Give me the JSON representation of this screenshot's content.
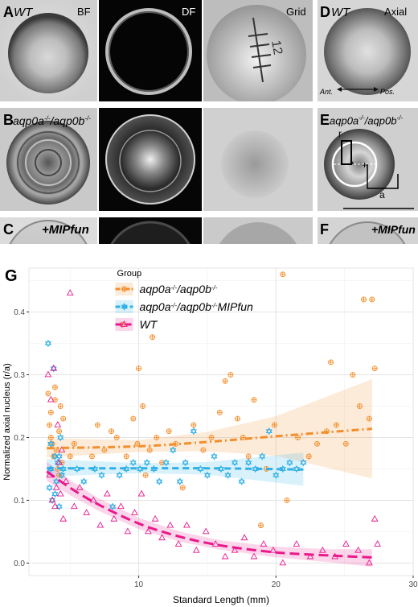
{
  "panels": {
    "A": {
      "letter": "A",
      "genotype": "WT"
    },
    "B": {
      "letter": "B",
      "genotype": "aqp0a",
      "genotype_sup1": "-/-",
      "genotype_mid": "/aqp0b",
      "genotype_sup2": "-/-"
    },
    "C": {
      "letter": "C",
      "treatment": "+MIPfun"
    },
    "D": {
      "letter": "D",
      "genotype": "WT",
      "view": "Axial",
      "ant": "Ant.",
      "pos": "Pos."
    },
    "E": {
      "letter": "E",
      "genotype": "aqp0a",
      "genotype_sup1": "-/-",
      "genotype_mid": "/aqp0b",
      "genotype_sup2": "-/-",
      "r_label": "r",
      "a_label": "a"
    },
    "F": {
      "letter": "F",
      "treatment": "+MIPfun"
    },
    "G": {
      "letter": "G"
    }
  },
  "column_labels": {
    "bf": "BF",
    "df": "DF",
    "grid": "Grid",
    "grid_number": "12"
  },
  "chart_data": {
    "type": "scatter",
    "xlabel": "Standard Length (mm)",
    "ylabel": "Normalized axial nucleus (r/a)",
    "xlim": [
      2,
      30
    ],
    "ylim": [
      -0.02,
      0.47
    ],
    "xticks": [
      10,
      20,
      30
    ],
    "yticks": [
      0.0,
      0.1,
      0.2,
      0.3,
      0.4
    ],
    "grid": true,
    "legend": {
      "title": "Group",
      "placement": "top-left"
    },
    "series": [
      {
        "name": "aqp0a-/-/aqp0b-/-",
        "name_parts": [
          "aqp0a",
          "-/-",
          "/aqp0b",
          "-/-",
          ""
        ],
        "color": "#f28e2b",
        "marker": "circle-plus",
        "line_style": "dash-dot",
        "fit": [
          [
            3.3,
            0.183
          ],
          [
            10,
            0.186
          ],
          [
            15,
            0.193
          ],
          [
            20,
            0.202
          ],
          [
            27,
            0.214
          ]
        ],
        "ci": [
          [
            3.3,
            0.168,
            0.199
          ],
          [
            10,
            0.177,
            0.196
          ],
          [
            15,
            0.178,
            0.209
          ],
          [
            20,
            0.171,
            0.234
          ],
          [
            27,
            0.135,
            0.293
          ]
        ],
        "points": [
          [
            3.4,
            0.27
          ],
          [
            3.5,
            0.22
          ],
          [
            3.6,
            0.24
          ],
          [
            3.7,
            0.19
          ],
          [
            3.8,
            0.17
          ],
          [
            3.9,
            0.26
          ],
          [
            4.0,
            0.18
          ],
          [
            4.1,
            0.15
          ],
          [
            4.2,
            0.21
          ],
          [
            4.3,
            0.25
          ],
          [
            4.4,
            0.16
          ],
          [
            4.5,
            0.23
          ],
          [
            3.6,
            0.2
          ],
          [
            3.9,
            0.28
          ],
          [
            4.2,
            0.14
          ],
          [
            5.0,
            0.17
          ],
          [
            5.3,
            0.19
          ],
          [
            6.6,
            0.17
          ],
          [
            7.0,
            0.22
          ],
          [
            7.5,
            0.18
          ],
          [
            8.0,
            0.21
          ],
          [
            8.4,
            0.2
          ],
          [
            8.8,
            0.38
          ],
          [
            9.1,
            0.17
          ],
          [
            9.6,
            0.23
          ],
          [
            9.9,
            0.19
          ],
          [
            10.0,
            0.31
          ],
          [
            10.3,
            0.25
          ],
          [
            10.5,
            0.14
          ],
          [
            10.8,
            0.18
          ],
          [
            11.0,
            0.36
          ],
          [
            11.3,
            0.2
          ],
          [
            11.7,
            0.16
          ],
          [
            12.2,
            0.21
          ],
          [
            12.7,
            0.19
          ],
          [
            13.2,
            0.12
          ],
          [
            14.0,
            0.22
          ],
          [
            14.7,
            0.18
          ],
          [
            15.3,
            0.2
          ],
          [
            15.9,
            0.24
          ],
          [
            16.3,
            0.29
          ],
          [
            16.7,
            0.3
          ],
          [
            17.2,
            0.23
          ],
          [
            17.6,
            0.2
          ],
          [
            18.0,
            0.17
          ],
          [
            18.4,
            0.26
          ],
          [
            18.9,
            0.06
          ],
          [
            19.3,
            0.15
          ],
          [
            19.9,
            0.22
          ],
          [
            20.5,
            0.46
          ],
          [
            20.8,
            0.1
          ],
          [
            21.6,
            0.2
          ],
          [
            22.4,
            0.17
          ],
          [
            23.0,
            0.19
          ],
          [
            23.7,
            0.21
          ],
          [
            24.0,
            0.32
          ],
          [
            24.4,
            0.22
          ],
          [
            25.1,
            0.19
          ],
          [
            25.6,
            0.3
          ],
          [
            26.1,
            0.25
          ],
          [
            26.4,
            0.42
          ],
          [
            26.8,
            0.23
          ],
          [
            27.0,
            0.42
          ],
          [
            27.2,
            0.31
          ]
        ]
      },
      {
        "name": "aqp0a-/-/aqp0b-/-MIPfun",
        "name_parts": [
          "aqp0a",
          "-/-",
          "/aqp0b",
          "-/-",
          "MIPfun"
        ],
        "color": "#2fb0e6",
        "marker": "hexagram",
        "line_style": "dashed",
        "fit": [
          [
            3.3,
            0.151
          ],
          [
            10,
            0.151
          ],
          [
            15,
            0.151
          ],
          [
            22,
            0.149
          ]
        ],
        "ci": [
          [
            3.3,
            0.138,
            0.166
          ],
          [
            10,
            0.143,
            0.159
          ],
          [
            15,
            0.141,
            0.161
          ],
          [
            22,
            0.123,
            0.176
          ]
        ],
        "points": [
          [
            3.4,
            0.35
          ],
          [
            3.5,
            0.12
          ],
          [
            3.6,
            0.15
          ],
          [
            3.7,
            0.1
          ],
          [
            3.8,
            0.31
          ],
          [
            3.9,
            0.17
          ],
          [
            4.0,
            0.13
          ],
          [
            4.1,
            0.16
          ],
          [
            4.2,
            0.09
          ],
          [
            4.3,
            0.2
          ],
          [
            4.4,
            0.14
          ],
          [
            3.6,
            0.19
          ],
          [
            3.9,
            0.11
          ],
          [
            4.2,
            0.17
          ],
          [
            4.5,
            0.15
          ],
          [
            5.5,
            0.15
          ],
          [
            6.0,
            0.13
          ],
          [
            6.8,
            0.15
          ],
          [
            7.3,
            0.14
          ],
          [
            8.1,
            0.09
          ],
          [
            8.6,
            0.14
          ],
          [
            9.1,
            0.15
          ],
          [
            9.6,
            0.16
          ],
          [
            10.1,
            0.15
          ],
          [
            10.6,
            0.16
          ],
          [
            11.1,
            0.15
          ],
          [
            11.5,
            0.13
          ],
          [
            12.0,
            0.16
          ],
          [
            12.5,
            0.18
          ],
          [
            13.0,
            0.13
          ],
          [
            13.4,
            0.16
          ],
          [
            14.0,
            0.21
          ],
          [
            14.5,
            0.15
          ],
          [
            15.0,
            0.14
          ],
          [
            15.5,
            0.17
          ],
          [
            16.0,
            0.15
          ],
          [
            16.5,
            0.14
          ],
          [
            17.0,
            0.16
          ],
          [
            17.5,
            0.13
          ],
          [
            18.0,
            0.16
          ],
          [
            18.5,
            0.15
          ],
          [
            19.0,
            0.17
          ],
          [
            19.5,
            0.21
          ],
          [
            20.0,
            0.14
          ],
          [
            20.5,
            0.15
          ],
          [
            21.0,
            0.16
          ],
          [
            21.5,
            0.15
          ],
          [
            22.0,
            0.16
          ]
        ]
      },
      {
        "name": "WT",
        "name_parts": [
          "WT",
          "",
          "",
          "",
          ""
        ],
        "color": "#e8198b",
        "marker": "triangle",
        "line_style": "long-dashed",
        "fit": [
          [
            3.3,
            0.146
          ],
          [
            5,
            0.12
          ],
          [
            7,
            0.094
          ],
          [
            10,
            0.063
          ],
          [
            13,
            0.042
          ],
          [
            16,
            0.028
          ],
          [
            20,
            0.017
          ],
          [
            24,
            0.012
          ],
          [
            27,
            0.009
          ]
        ],
        "ci": [
          [
            3.3,
            0.131,
            0.161
          ],
          [
            5,
            0.108,
            0.132
          ],
          [
            7,
            0.084,
            0.104
          ],
          [
            10,
            0.054,
            0.072
          ],
          [
            13,
            0.034,
            0.05
          ],
          [
            16,
            0.021,
            0.036
          ],
          [
            20,
            0.009,
            0.026
          ],
          [
            24,
            0.001,
            0.022
          ],
          [
            27,
            -0.006,
            0.022
          ]
        ],
        "points": [
          [
            3.4,
            0.3
          ],
          [
            3.5,
            0.14
          ],
          [
            3.6,
            0.26
          ],
          [
            3.7,
            0.1
          ],
          [
            3.8,
            0.31
          ],
          [
            3.9,
            0.09
          ],
          [
            4.0,
            0.12
          ],
          [
            4.1,
            0.22
          ],
          [
            4.2,
            0.16
          ],
          [
            4.3,
            0.11
          ],
          [
            4.4,
            0.18
          ],
          [
            4.5,
            0.07
          ],
          [
            4.7,
            0.13
          ],
          [
            5.0,
            0.43
          ],
          [
            5.3,
            0.09
          ],
          [
            5.7,
            0.12
          ],
          [
            6.2,
            0.08
          ],
          [
            6.7,
            0.1
          ],
          [
            7.2,
            0.06
          ],
          [
            7.7,
            0.11
          ],
          [
            8.2,
            0.07
          ],
          [
            8.7,
            0.09
          ],
          [
            9.2,
            0.05
          ],
          [
            9.7,
            0.08
          ],
          [
            10.2,
            0.11
          ],
          [
            10.7,
            0.05
          ],
          [
            11.2,
            0.07
          ],
          [
            11.7,
            0.04
          ],
          [
            12.3,
            0.06
          ],
          [
            12.9,
            0.03
          ],
          [
            13.5,
            0.06
          ],
          [
            14.2,
            0.02
          ],
          [
            14.9,
            0.05
          ],
          [
            15.6,
            0.03
          ],
          [
            16.3,
            0.01
          ],
          [
            17.0,
            0.02
          ],
          [
            17.7,
            0.04
          ],
          [
            18.4,
            0.01
          ],
          [
            19.1,
            0.03
          ],
          [
            19.8,
            0.02
          ],
          [
            20.5,
            0.0
          ],
          [
            21.5,
            0.03
          ],
          [
            22.5,
            0.01
          ],
          [
            23.4,
            0.02
          ],
          [
            24.3,
            0.01
          ],
          [
            25.1,
            0.03
          ],
          [
            26.0,
            0.02
          ],
          [
            26.8,
            0.0
          ],
          [
            27.2,
            0.07
          ],
          [
            27.4,
            0.03
          ]
        ]
      }
    ]
  }
}
